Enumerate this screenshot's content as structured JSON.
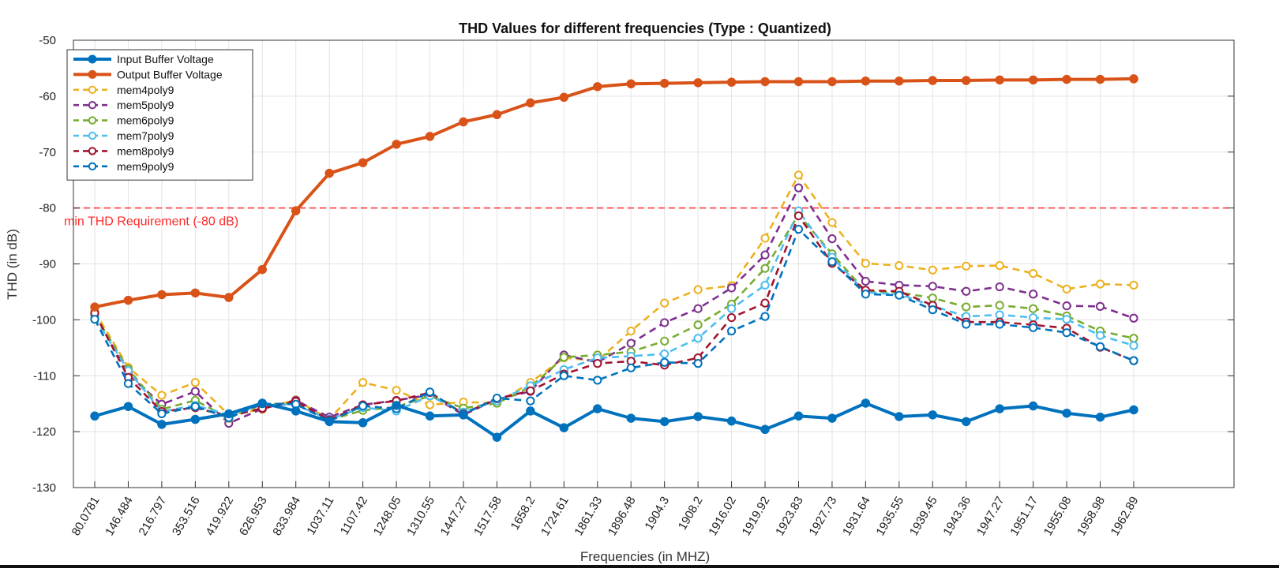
{
  "chart_data": {
    "type": "line",
    "title": "THD Values for different frequencies (Type : Quantized)",
    "xlabel": "Frequencies (in MHZ)",
    "ylabel": "THD (in dB)",
    "ylim": [
      -130,
      -50
    ],
    "yticks": [
      -130,
      -120,
      -110,
      -100,
      -90,
      -80,
      -70,
      -60,
      -50
    ],
    "grid": true,
    "legend_position": "top-left",
    "categories": [
      "80.0781",
      "146.484",
      "216.797",
      "353.516",
      "419.922",
      "626.953",
      "833.984",
      "1037.11",
      "1107.42",
      "1248.05",
      "1310.55",
      "1447.27",
      "1517.58",
      "1658.2",
      "1724.61",
      "1861.33",
      "1896.48",
      "1904.3",
      "1908.2",
      "1916.02",
      "1919.92",
      "1923.83",
      "1927.73",
      "1931.64",
      "1935.55",
      "1939.45",
      "1943.36",
      "1947.27",
      "1951.17",
      "1955.08",
      "1958.98",
      "1962.89"
    ],
    "series": [
      {
        "name": "Input Buffer Voltage",
        "color": "#0072bd",
        "style": "solid",
        "marker": "filled",
        "values": [
          -117.2,
          -115.5,
          -118.7,
          -117.8,
          -116.8,
          -114.9,
          -116.3,
          -118.2,
          -118.4,
          -115.3,
          -117.2,
          -117.0,
          -121.0,
          -116.3,
          -119.3,
          -115.9,
          -117.6,
          -118.2,
          -117.3,
          -118.1,
          -119.6,
          -117.2,
          -117.6,
          -114.9,
          -117.3,
          -117.0,
          -118.2,
          -115.9,
          -115.4,
          -116.7,
          -117.4,
          -116.1
        ]
      },
      {
        "name": "Output Buffer Voltage",
        "color": "#d95319",
        "style": "solid",
        "marker": "filled",
        "values": [
          -97.7,
          -96.5,
          -95.5,
          -95.2,
          -96.0,
          -91.0,
          -80.5,
          -73.8,
          -71.9,
          -68.6,
          -67.2,
          -64.6,
          -63.3,
          -61.2,
          -60.2,
          -58.3,
          -57.8,
          -57.7,
          -57.6,
          -57.5,
          -57.4,
          -57.4,
          -57.4,
          -57.3,
          -57.3,
          -57.2,
          -57.2,
          -57.1,
          -57.1,
          -57.0,
          -57.0,
          -56.9
        ]
      },
      {
        "name": "mem4poly9",
        "color": "#edb120",
        "style": "dashed",
        "marker": "open",
        "values": [
          -98.5,
          -108.5,
          -113.5,
          -111.2,
          -117.0,
          -116.0,
          -114.3,
          -117.8,
          -111.2,
          -112.6,
          -115.2,
          -114.7,
          -114.9,
          -111.2,
          -106.8,
          -107.3,
          -102.0,
          -97.0,
          -94.6,
          -93.9,
          -85.4,
          -74.1,
          -82.6,
          -89.9,
          -90.3,
          -91.1,
          -90.4,
          -90.3,
          -91.7,
          -94.5,
          -93.6,
          -93.8
        ]
      },
      {
        "name": "mem5poly9",
        "color": "#7e2f8e",
        "style": "dashed",
        "marker": "open",
        "values": [
          -98.9,
          -109.8,
          -115.1,
          -112.8,
          -118.5,
          -115.9,
          -114.4,
          -117.4,
          -115.2,
          -114.4,
          -113.4,
          -117.0,
          -114.2,
          -112.8,
          -106.3,
          -107.6,
          -104.2,
          -100.5,
          -98.0,
          -94.3,
          -88.4,
          -76.4,
          -85.5,
          -93.1,
          -93.8,
          -94.0,
          -94.9,
          -94.1,
          -95.4,
          -97.5,
          -97.6,
          -99.7
        ]
      },
      {
        "name": "mem6poly9",
        "color": "#77ac30",
        "style": "dashed",
        "marker": "open",
        "values": [
          -99.1,
          -108.8,
          -116.0,
          -114.4,
          -117.6,
          -115.1,
          -114.9,
          -117.9,
          -116.2,
          -115.6,
          -113.6,
          -115.8,
          -114.9,
          -112.0,
          -106.7,
          -106.3,
          -105.7,
          -103.8,
          -100.9,
          -97.2,
          -90.8,
          -81.2,
          -88.2,
          -94.9,
          -95.1,
          -96.1,
          -97.7,
          -97.4,
          -98.0,
          -99.3,
          -102.0,
          -103.3
        ]
      },
      {
        "name": "mem7poly9",
        "color": "#4dbeee",
        "style": "dashed",
        "marker": "open",
        "values": [
          -99.6,
          -109.1,
          -116.4,
          -115.3,
          -117.0,
          -115.2,
          -115.2,
          -117.8,
          -115.7,
          -116.3,
          -113.6,
          -116.5,
          -114.5,
          -111.8,
          -108.9,
          -106.8,
          -106.5,
          -106.1,
          -103.3,
          -98.0,
          -93.8,
          -80.5,
          -88.8,
          -95.1,
          -95.4,
          -97.5,
          -99.4,
          -99.1,
          -99.6,
          -99.9,
          -102.8,
          -104.6
        ]
      },
      {
        "name": "mem8poly9",
        "color": "#a2142f",
        "style": "dashed",
        "marker": "open",
        "values": [
          -98.8,
          -110.3,
          -116.4,
          -115.7,
          -117.3,
          -115.8,
          -114.6,
          -117.9,
          -115.2,
          -114.5,
          -113.0,
          -116.8,
          -114.1,
          -112.7,
          -109.7,
          -107.8,
          -107.4,
          -108.1,
          -106.8,
          -99.6,
          -97.0,
          -81.4,
          -89.9,
          -94.7,
          -94.9,
          -97.4,
          -100.4,
          -100.4,
          -100.9,
          -101.5,
          -104.9,
          -107.3
        ]
      },
      {
        "name": "mem9poly9",
        "color": "#0072bd",
        "style": "dashed",
        "marker": "open",
        "values": [
          -99.9,
          -111.4,
          -116.8,
          -115.5,
          -117.5,
          -115.0,
          -115.1,
          -118.1,
          -115.4,
          -115.9,
          -112.9,
          -116.9,
          -114.0,
          -114.5,
          -110.0,
          -110.8,
          -108.6,
          -107.6,
          -107.8,
          -102.0,
          -99.4,
          -83.8,
          -89.6,
          -95.4,
          -95.6,
          -98.2,
          -100.8,
          -100.8,
          -101.4,
          -102.3,
          -104.8,
          -107.3
        ]
      }
    ],
    "reference_line": {
      "y": -80,
      "label": "min THD Requirement (-80 dB)",
      "color": "#ff2a2a"
    }
  }
}
